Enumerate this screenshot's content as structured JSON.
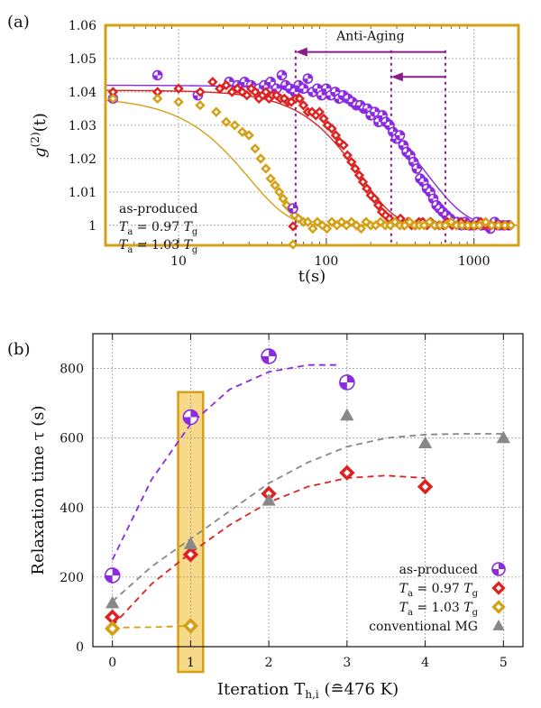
{
  "chart_data": [
    {
      "panel": "(a)",
      "type": "scatter",
      "xlabel": "t(s)",
      "ylabel": "g(2)(t)",
      "ylabel_main": "g",
      "ylabel_sup": "(2)",
      "ylabel_tail": "(t)",
      "xscale": "log",
      "xlim": [
        3.2,
        2000
      ],
      "ylim": [
        0.994,
        1.06
      ],
      "xticks": [
        10,
        100,
        1000
      ],
      "xtick_labels": [
        "10",
        "100",
        "1000"
      ],
      "yticks": [
        1.0,
        1.01,
        1.02,
        1.03,
        1.04,
        1.05,
        1.06
      ],
      "ytick_labels": [
        "1",
        "1.01",
        "1.02",
        "1.03",
        "1.04",
        "1.05",
        "1.06"
      ],
      "grid": true,
      "legend_position": "bottom-left",
      "frame_color": "#d4a017",
      "annotation": {
        "text": "Anti-Aging",
        "color": "#8b1a8b",
        "arrows": [
          {
            "from": 640,
            "to": 62,
            "y": 1.052
          },
          {
            "from": 640,
            "to": 275,
            "y": 1.0445
          }
        ],
        "dotted_lines_x": [
          62,
          275,
          640
        ]
      },
      "series": [
        {
          "name": "as-produced",
          "color": "#8a2be2",
          "marker": "circle",
          "tau": 480,
          "baseline": 1.0,
          "amplitude": 1.042,
          "beta": 1.6,
          "x": [
            3.6,
            7.2,
            13.5,
            22,
            25,
            28,
            31,
            35,
            38,
            42,
            46,
            50,
            53,
            57,
            61,
            65,
            70,
            75,
            81,
            87,
            93,
            100,
            107,
            115,
            122,
            130,
            140,
            150,
            160,
            170,
            180,
            190,
            200,
            213,
            226,
            240,
            253,
            268,
            283,
            298,
            315,
            333,
            350,
            370,
            390,
            410,
            432,
            455,
            480,
            505,
            530,
            558,
            585,
            615,
            650,
            690,
            730,
            770,
            820,
            870,
            930,
            990,
            1050,
            1120,
            1200,
            1290,
            1380,
            1480,
            1600,
            1720
          ],
          "y": [
            1.038,
            1.045,
            1.039,
            1.043,
            1.042,
            1.043,
            1.042,
            1.041,
            1.042,
            1.043,
            1.041,
            1.045,
            1.042,
            1.041,
            1.04,
            1.042,
            1.041,
            1.044,
            1.04,
            1.041,
            1.039,
            1.041,
            1.039,
            1.04,
            1.038,
            1.039,
            1.038,
            1.037,
            1.036,
            1.036,
            1.035,
            1.035,
            1.033,
            1.034,
            1.031,
            1.033,
            1.031,
            1.03,
            1.028,
            1.026,
            1.027,
            1.024,
            1.022,
            1.021,
            1.019,
            1.017,
            1.014,
            1.013,
            1.011,
            1.01,
            1.008,
            1.006,
            1.005,
            1.004,
            1.003,
            1.002,
            1.001,
            1.001,
            1.0,
            1.001,
            1.0,
            1.0,
            1.001,
            1.0,
            1.0,
            0.999,
            1.001,
            1.0,
            1.0,
            1.0
          ]
        },
        {
          "name": "Ta = 0.97 Tg",
          "label_main": "T",
          "label_sub": "a",
          "label_eq": " = 0.97 ",
          "label_main2": "T",
          "label_sub2": "g",
          "color": "#dd2222",
          "marker": "diamond",
          "tau": 170,
          "baseline": 1.0,
          "amplitude": 1.0405,
          "beta": 1.8,
          "x": [
            3.6,
            7.2,
            10,
            14,
            17,
            19,
            21,
            23,
            25,
            27,
            29,
            31,
            33,
            35,
            37,
            39,
            41,
            43,
            46,
            49,
            52,
            55,
            58,
            62,
            66,
            70,
            75,
            80,
            85,
            90,
            96,
            102,
            109,
            116,
            123,
            131,
            139,
            148,
            157,
            167,
            177,
            188,
            200,
            212,
            225,
            238,
            252,
            267,
            283,
            300,
            318,
            337,
            357,
            378,
            400,
            425,
            450,
            480,
            510,
            545,
            580,
            620,
            660,
            710,
            760,
            820,
            880,
            950,
            1030,
            1110,
            1200,
            1300,
            1420,
            1550,
            1700
          ],
          "y": [
            1.04,
            1.04,
            1.041,
            1.04,
            1.043,
            1.041,
            1.042,
            1.04,
            1.041,
            1.04,
            1.039,
            1.041,
            1.04,
            1.038,
            1.039,
            1.04,
            1.038,
            1.039,
            1.039,
            1.038,
            1.038,
            1.037,
            1.037,
            1.038,
            1.038,
            1.036,
            1.034,
            1.034,
            1.033,
            1.034,
            1.032,
            1.03,
            1.029,
            1.027,
            1.025,
            1.024,
            1.021,
            1.019,
            1.017,
            1.015,
            1.013,
            1.011,
            1.009,
            1.008,
            1.006,
            1.004,
            1.003,
            1.002,
            1.001,
            1.001,
            1.002,
            1.0,
            1.001,
            1.0,
            1.0,
            1.001,
            1.001,
            1.0,
            1.001,
            1.0,
            1.0,
            1.0,
            1.001,
            1.0,
            1.0,
            1.001,
            1.0,
            1.0,
            1.0,
            1.001,
            1.0,
            1.0,
            1.0,
            1.0,
            1.0
          ]
        },
        {
          "name": "Ta = 1.03 Tg",
          "label_main": "T",
          "label_sub": "a",
          "label_eq": " = 1.03 ",
          "label_main2": "T",
          "label_sub2": "g",
          "color": "#d4a017",
          "marker": "diamond",
          "tau": 30,
          "baseline": 1.0,
          "amplitude": 1.0385,
          "beta": 1.6,
          "x": [
            3.6,
            7.2,
            10,
            14,
            18,
            21,
            24,
            27,
            30,
            33,
            36,
            39,
            42,
            45,
            48,
            51,
            54,
            57,
            61,
            65,
            70,
            75,
            81,
            87,
            94,
            101,
            109,
            118,
            127,
            137,
            148,
            160,
            172,
            186,
            200,
            216,
            233,
            251,
            271,
            292,
            315,
            340,
            367,
            396,
            427,
            460,
            500,
            540,
            590,
            640,
            700,
            760,
            830,
            910,
            1000,
            1090,
            1200,
            1320,
            1460,
            1620,
            1780
          ],
          "y": [
            1.038,
            1.038,
            1.037,
            1.036,
            1.034,
            1.031,
            1.03,
            1.028,
            1.027,
            1.023,
            1.02,
            1.017,
            1.014,
            1.012,
            1.01,
            1.008,
            1.006,
            1.005,
            1.003,
            1.002,
            1.001,
            1.001,
            0.999,
            1.001,
            1.0,
            0.999,
            1.001,
            1.0,
            1.001,
            1.0,
            1.001,
            1.0,
            0.999,
            1.001,
            1.0,
            1.0,
            1.001,
            1.0,
            1.0,
            1.001,
            1.0,
            1.0,
            1.001,
            1.0,
            1.0,
            1.0,
            1.001,
            1.0,
            1.0,
            1.0,
            1.001,
            1.0,
            1.0,
            1.0,
            1.0,
            1.0,
            1.001,
            1.0,
            1.0,
            1.0,
            1.0
          ]
        }
      ]
    },
    {
      "panel": "(b)",
      "type": "scatter",
      "xlabel": "Iteration Th,i (≘476 K)",
      "xlabel_main": "Iteration T",
      "xlabel_sub": "h,i",
      "xlabel_tail": " (≘476 K)",
      "ylabel": "Relaxation time τ (s)",
      "xlim": [
        -0.25,
        5.25
      ],
      "ylim": [
        0,
        900
      ],
      "xticks": [
        0,
        1,
        2,
        3,
        4,
        5
      ],
      "xtick_labels": [
        "0",
        "1",
        "2",
        "3",
        "4",
        "5"
      ],
      "yticks": [
        0,
        200,
        400,
        600,
        800
      ],
      "ytick_labels": [
        "0",
        "200",
        "400",
        "600",
        "800"
      ],
      "grid": true,
      "legend_position": "bottom-right",
      "highlight": {
        "x": 1,
        "fill": "#f7d98a",
        "stroke": "#d4a017"
      },
      "series": [
        {
          "name": "as-produced",
          "color": "#8a2be2",
          "marker": "circle",
          "x": [
            0,
            1,
            2,
            3
          ],
          "y": [
            205,
            660,
            835,
            760
          ],
          "fit": {
            "x": [
              0,
              0.5,
              1,
              1.5,
              2,
              2.5,
              2.9
            ],
            "y": [
              250,
              480,
              640,
              740,
              790,
              810,
              810
            ]
          }
        },
        {
          "name": "Ta = 0.97 Tg",
          "label_main": "T",
          "label_sub": "a",
          "label_eq": " = 0.97 ",
          "label_main2": "T",
          "label_sub2": "g",
          "color": "#dd2222",
          "marker": "diamond",
          "x": [
            0,
            1,
            2,
            3,
            4
          ],
          "y": [
            85,
            265,
            440,
            500,
            460
          ],
          "fit": {
            "x": [
              0,
              0.5,
              1,
              1.5,
              2,
              2.5,
              3,
              3.5,
              4
            ],
            "y": [
              60,
              180,
              270,
              350,
              415,
              460,
              485,
              492,
              485
            ]
          }
        },
        {
          "name": "Ta = 1.03 Tg",
          "label_main": "T",
          "label_sub": "a",
          "label_eq": " = 1.03 ",
          "label_main2": "T",
          "label_sub2": "g",
          "color": "#d4a017",
          "marker": "diamond",
          "x": [
            0,
            1
          ],
          "y": [
            52,
            60
          ],
          "fit": {
            "x": [
              0,
              0.5,
              1
            ],
            "y": [
              55,
              56,
              60
            ]
          }
        },
        {
          "name": "conventional MG",
          "color": "#888888",
          "marker": "triangle",
          "x": [
            0,
            1,
            2,
            3,
            4,
            5
          ],
          "y": [
            125,
            295,
            420,
            665,
            585,
            600
          ],
          "fit": {
            "x": [
              0,
              0.5,
              1,
              1.5,
              2,
              2.5,
              3,
              3.5,
              4,
              4.5,
              5
            ],
            "y": [
              130,
              230,
              310,
              390,
              470,
              530,
              575,
              600,
              610,
              612,
              612
            ]
          }
        }
      ]
    }
  ]
}
